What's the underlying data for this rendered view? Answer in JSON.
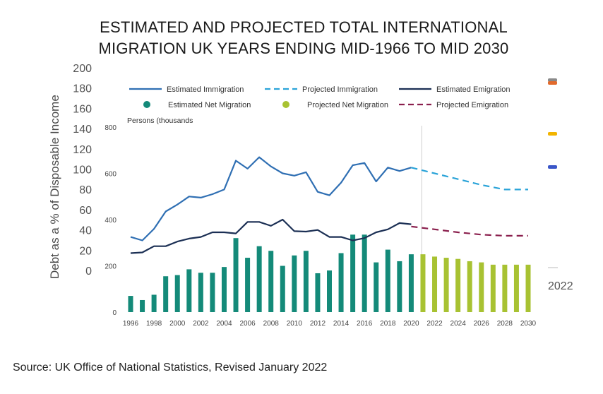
{
  "title_lines": [
    "ESTIMATED AND PROJECTED TOTAL INTERNATIONAL",
    "MIGRATION UK YEARS ENDING MID-1966 TO MID 2030"
  ],
  "source": "Source: UK Office of National Statistics, Revised January 2022",
  "background_axis": {
    "ylabel": "Debt as a % of Disposable Income",
    "ticks": [
      "200",
      "180",
      "160",
      "140",
      "120",
      "100",
      "80",
      "60",
      "40",
      "20",
      "0"
    ],
    "right_fragment": "2022"
  },
  "chart_data": {
    "type": "line",
    "units_label": "Persons (thousands",
    "ylim": [
      0,
      800
    ],
    "yticks": [
      "800",
      "600",
      "400",
      "200",
      "0"
    ],
    "x_ticks": [
      "1996",
      "1998",
      "2000",
      "2002",
      "2004",
      "2006",
      "2008",
      "2010",
      "2012",
      "2014",
      "2016",
      "2018",
      "2020",
      "2022",
      "2024",
      "2026",
      "2028",
      "2030"
    ],
    "legend": [
      {
        "label": "Estimated Immigration",
        "kind": "line",
        "color": "#2f6fb3"
      },
      {
        "label": "Projected Immigration",
        "kind": "dash",
        "color": "#2aa3d8"
      },
      {
        "label": "Estimated Emigration",
        "kind": "line",
        "color": "#1b2f54"
      },
      {
        "label": "Estimated Net Migration",
        "kind": "dot",
        "color": "#148a79"
      },
      {
        "label": "Projected Net Migration",
        "kind": "dot",
        "color": "#a8c232"
      },
      {
        "label": "Projected Emigration",
        "kind": "dash",
        "color": "#8a1f4d"
      }
    ],
    "series": [
      {
        "name": "Estimated Immigration",
        "type": "line",
        "color": "#2f6fb3",
        "x": [
          1996,
          1997,
          1998,
          1999,
          2000,
          2001,
          2002,
          2003,
          2004,
          2005,
          2006,
          2007,
          2008,
          2009,
          2010,
          2011,
          2012,
          2013,
          2014,
          2015,
          2016,
          2017,
          2018,
          2019,
          2020
        ],
        "values": [
          325,
          310,
          360,
          435,
          465,
          500,
          495,
          510,
          530,
          655,
          620,
          670,
          630,
          600,
          590,
          605,
          520,
          505,
          560,
          635,
          645,
          565,
          625,
          610,
          625
        ]
      },
      {
        "name": "Estimated Emigration",
        "type": "line",
        "color": "#1b2f54",
        "x": [
          1996,
          1997,
          1998,
          1999,
          2000,
          2001,
          2002,
          2003,
          2004,
          2005,
          2006,
          2007,
          2008,
          2009,
          2010,
          2011,
          2012,
          2013,
          2014,
          2015,
          2016,
          2017,
          2018,
          2019,
          2020
        ],
        "values": [
          255,
          258,
          285,
          285,
          305,
          318,
          325,
          345,
          345,
          340,
          390,
          390,
          373,
          400,
          350,
          348,
          355,
          325,
          325,
          310,
          320,
          345,
          358,
          385,
          380
        ]
      },
      {
        "name": "Projected Immigration",
        "type": "dash",
        "color": "#2aa3d8",
        "x": [
          2020,
          2022,
          2024,
          2026,
          2028,
          2030
        ],
        "values": [
          625,
          600,
          575,
          550,
          530,
          530
        ]
      },
      {
        "name": "Projected Emigration",
        "type": "dash",
        "color": "#8a1f4d",
        "x": [
          2020,
          2022,
          2024,
          2026,
          2028,
          2030
        ],
        "values": [
          370,
          358,
          345,
          335,
          330,
          330
        ]
      },
      {
        "name": "Estimated Net Migration",
        "type": "bar",
        "color": "#148a79",
        "x": [
          1996,
          1997,
          1998,
          1999,
          2000,
          2001,
          2002,
          2003,
          2004,
          2005,
          2006,
          2007,
          2008,
          2009,
          2010,
          2011,
          2012,
          2013,
          2014,
          2015,
          2016,
          2017,
          2018,
          2019,
          2020
        ],
        "values": [
          70,
          52,
          75,
          155,
          160,
          185,
          170,
          170,
          195,
          320,
          235,
          285,
          265,
          200,
          245,
          265,
          168,
          180,
          255,
          335,
          335,
          215,
          270,
          220,
          250
        ]
      },
      {
        "name": "Projected Net Migration",
        "type": "bar",
        "color": "#a8c232",
        "x": [
          2021,
          2022,
          2023,
          2024,
          2025,
          2026,
          2027,
          2028,
          2029,
          2030
        ],
        "values": [
          250,
          240,
          235,
          230,
          220,
          215,
          205,
          205,
          205,
          205
        ]
      }
    ]
  }
}
